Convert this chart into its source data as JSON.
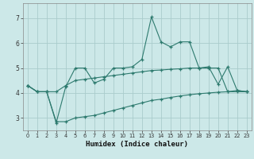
{
  "xlabel": "Humidex (Indice chaleur)",
  "bg_color": "#cce8e8",
  "grid_color": "#aacccc",
  "line_color": "#2d7a6e",
  "xlim": [
    -0.5,
    23.5
  ],
  "ylim": [
    2.5,
    7.6
  ],
  "yticks": [
    3,
    4,
    5,
    6,
    7
  ],
  "xticks": [
    0,
    1,
    2,
    3,
    4,
    5,
    6,
    7,
    8,
    9,
    10,
    11,
    12,
    13,
    14,
    15,
    16,
    17,
    18,
    19,
    20,
    21,
    22,
    23
  ],
  "series1_x": [
    0,
    1,
    2,
    3,
    4,
    5,
    6,
    7,
    8,
    9,
    10,
    11,
    12,
    13,
    14,
    15,
    16,
    17,
    18,
    19,
    20,
    21,
    22,
    23
  ],
  "series1_y": [
    4.3,
    4.05,
    4.05,
    2.8,
    4.25,
    5.0,
    5.0,
    4.4,
    4.55,
    5.0,
    5.0,
    5.05,
    5.35,
    7.05,
    6.05,
    5.85,
    6.05,
    6.05,
    5.0,
    5.05,
    4.35,
    5.05,
    4.1,
    4.05
  ],
  "series2_x": [
    0,
    1,
    2,
    3,
    4,
    5,
    6,
    7,
    8,
    9,
    10,
    11,
    12,
    13,
    14,
    15,
    16,
    17,
    18,
    19,
    20,
    21,
    22,
    23
  ],
  "series2_y": [
    4.3,
    4.05,
    4.05,
    4.05,
    4.3,
    4.5,
    4.55,
    4.6,
    4.65,
    4.7,
    4.75,
    4.8,
    4.85,
    4.9,
    4.92,
    4.95,
    4.97,
    5.0,
    5.0,
    5.0,
    5.0,
    4.05,
    4.1,
    4.05
  ],
  "series3_x": [
    0,
    1,
    2,
    3,
    4,
    5,
    6,
    7,
    8,
    9,
    10,
    11,
    12,
    13,
    14,
    15,
    16,
    17,
    18,
    19,
    20,
    21,
    22,
    23
  ],
  "series3_y": [
    4.3,
    4.05,
    4.05,
    2.85,
    2.85,
    3.0,
    3.05,
    3.1,
    3.2,
    3.3,
    3.4,
    3.5,
    3.6,
    3.7,
    3.75,
    3.82,
    3.88,
    3.93,
    3.97,
    4.0,
    4.03,
    4.05,
    4.05,
    4.05
  ]
}
